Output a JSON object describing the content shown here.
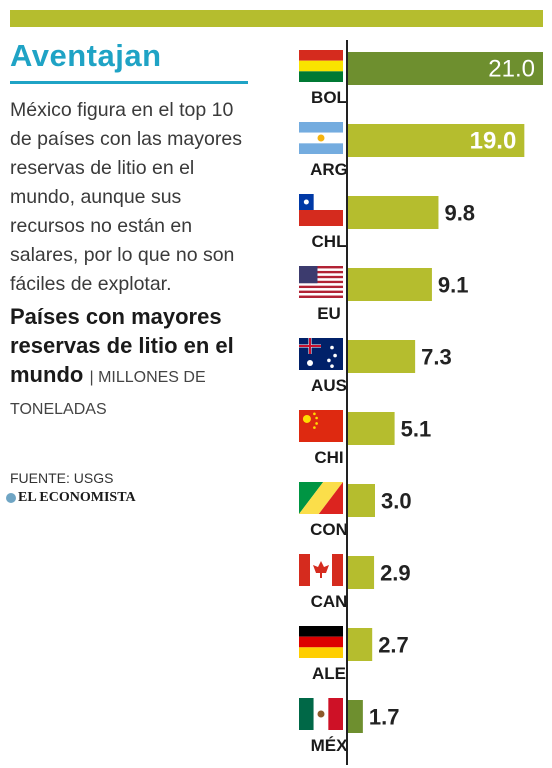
{
  "header": {
    "headline": "Aventajan",
    "intro": "México figura en el top 10 de países con las mayores reservas de litio en el mundo, aunque sus recursos no están en salares, por lo que no son fáciles de explotar."
  },
  "chart_data": {
    "type": "bar",
    "orientation": "horizontal",
    "title": "Países con mayores reservas de litio en el mundo",
    "units": "MILLONES DE TONELADAS",
    "categories": [
      "BOL",
      "ARG",
      "CHL",
      "EU",
      "AUS",
      "CHI",
      "CON",
      "CAN",
      "ALE",
      "MÉX"
    ],
    "values": [
      21.0,
      19.0,
      9.8,
      9.1,
      7.3,
      5.1,
      3.0,
      2.9,
      2.7,
      1.7
    ],
    "value_labels": [
      "21.0",
      "19.0",
      "9.8",
      "9.1",
      "7.3",
      "5.1",
      "3.0",
      "2.9",
      "2.7",
      "1.7"
    ],
    "flags": [
      "bolivia-flag",
      "argentina-flag",
      "chile-flag",
      "usa-flag",
      "australia-flag",
      "china-flag",
      "congo-flag",
      "canada-flag",
      "germany-flag",
      "mexico-flag"
    ],
    "highlight": [
      "BOL",
      "MÉX"
    ],
    "colors": {
      "bar": "#b5bd2e",
      "highlight_bar": "#6e8f2f",
      "axis": "#222222",
      "inside_label": "#ffffff",
      "outside_label": "#222222"
    },
    "xlim": [
      0,
      21
    ]
  },
  "footer": {
    "source": "FUENTE: USGS",
    "brand": "EL ECONOMISTA"
  }
}
